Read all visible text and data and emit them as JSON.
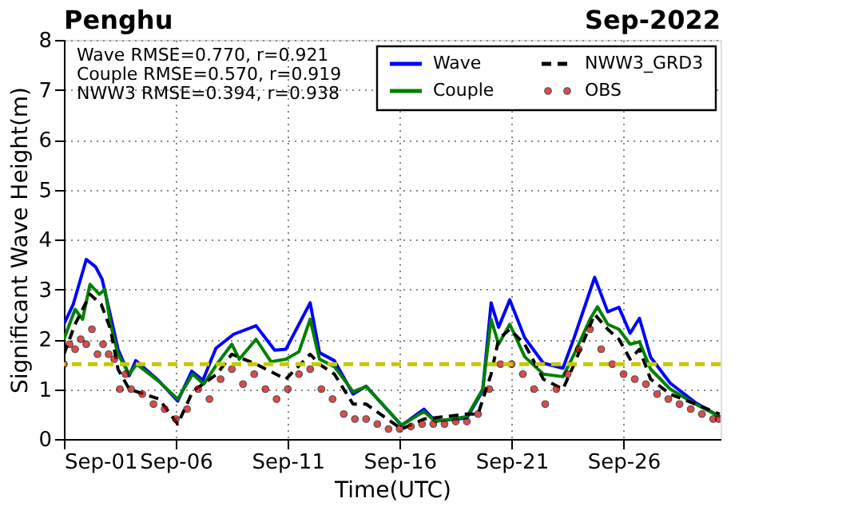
{
  "chart_data": {
    "type": "line",
    "title": "Penghu",
    "subtitle": "Sep-2022",
    "xlabel": "Time(UTC)",
    "ylabel": "Significant Wave Height(m)",
    "annotations": [
      "Wave RMSE=0.770, r=0.921",
      "Couple RMSE=0.570, r=0.919",
      "NWW3 RMSE=0.394, r=0.938"
    ],
    "xlim": [
      "2022-09-01",
      "2022-09-30T08:00"
    ],
    "xticks": [
      {
        "value": "2022-09-01",
        "label": "Sep-01"
      },
      {
        "value": "2022-09-06",
        "label": "Sep-06"
      },
      {
        "value": "2022-09-11",
        "label": "Sep-11"
      },
      {
        "value": "2022-09-16",
        "label": "Sep-16"
      },
      {
        "value": "2022-09-21",
        "label": "Sep-21"
      },
      {
        "value": "2022-09-26",
        "label": "Sep-26"
      }
    ],
    "ylim": [
      0,
      8
    ],
    "yticks": [
      0,
      1,
      2,
      3,
      4,
      5,
      6,
      7,
      8
    ],
    "grid": true,
    "legend": "top right",
    "ref_lines": [
      {
        "axis": "y",
        "value": 1.5,
        "color": "#c8c800",
        "line_style": "dashed"
      }
    ],
    "series": [
      {
        "name": "Wave",
        "color": "#0000ff",
        "line_style": "solid",
        "x": [
          "2022-09-01T00:00",
          "2022-09-01T10:00",
          "2022-09-02T00:00",
          "2022-09-02T10:00",
          "2022-09-02T17:00",
          "2022-09-03T01:00",
          "2022-09-03T10:00",
          "2022-09-03T22:00",
          "2022-09-04T05:00",
          "2022-09-05T05:00",
          "2022-09-06T02:00",
          "2022-09-06T17:00",
          "2022-09-07T05:00",
          "2022-09-07T19:00",
          "2022-09-08T14:00",
          "2022-09-09T14:00",
          "2022-09-10T10:00",
          "2022-09-10T22:00",
          "2022-09-12T00:00",
          "2022-09-12T10:00",
          "2022-09-13T02:00",
          "2022-09-13T22:00",
          "2022-09-14T12:00",
          "2022-09-16T02:00",
          "2022-09-17T02:00",
          "2022-09-17T14:00",
          "2022-09-19T00:00",
          "2022-09-19T17:00",
          "2022-09-20T02:00",
          "2022-09-20T10:00",
          "2022-09-20T22:00",
          "2022-09-21T14:00",
          "2022-09-22T10:00",
          "2022-09-23T07:00",
          "2022-09-23T19:00",
          "2022-09-24T17:00",
          "2022-09-25T07:00",
          "2022-09-25T19:00",
          "2022-09-26T07:00",
          "2022-09-26T17:00",
          "2022-09-27T05:00",
          "2022-09-28T02:00",
          "2022-09-29T05:00",
          "2022-09-30T07:00"
        ],
        "values": [
          2.3,
          2.7,
          3.6,
          3.45,
          3.2,
          2.55,
          1.8,
          1.27,
          1.57,
          1.18,
          0.76,
          1.36,
          1.18,
          1.82,
          2.1,
          2.27,
          1.78,
          1.8,
          2.73,
          1.73,
          1.57,
          0.9,
          1.06,
          0.27,
          0.6,
          0.36,
          0.42,
          0.97,
          2.73,
          2.24,
          2.79,
          2.03,
          1.52,
          1.42,
          2.03,
          3.24,
          2.55,
          2.64,
          2.12,
          2.42,
          1.64,
          1.12,
          0.73,
          0.45
        ]
      },
      {
        "name": "Couple",
        "color": "#008000",
        "line_style": "solid",
        "x": [
          "2022-09-01T00:00",
          "2022-09-01T12:00",
          "2022-09-01T20:00",
          "2022-09-02T04:00",
          "2022-09-02T14:00",
          "2022-09-02T20:00",
          "2022-09-03T02:00",
          "2022-09-03T10:00",
          "2022-09-03T22:00",
          "2022-09-04T06:00",
          "2022-09-05T06:00",
          "2022-09-06T02:00",
          "2022-09-06T18:00",
          "2022-09-07T06:00",
          "2022-09-07T20:00",
          "2022-09-08T12:00",
          "2022-09-08T20:00",
          "2022-09-09T14:00",
          "2022-09-10T06:00",
          "2022-09-10T22:00",
          "2022-09-11T12:00",
          "2022-09-12T00:00",
          "2022-09-12T10:00",
          "2022-09-13T02:00",
          "2022-09-13T22:00",
          "2022-09-14T12:00",
          "2022-09-16T02:00",
          "2022-09-17T02:00",
          "2022-09-17T14:00",
          "2022-09-19T00:00",
          "2022-09-19T17:00",
          "2022-09-20T02:00",
          "2022-09-20T10:00",
          "2022-09-20T22:00",
          "2022-09-21T14:00",
          "2022-09-22T10:00",
          "2022-09-23T07:00",
          "2022-09-23T19:00",
          "2022-09-24T12:00",
          "2022-09-24T20:00",
          "2022-09-25T07:00",
          "2022-09-25T19:00",
          "2022-09-26T07:00",
          "2022-09-26T17:00",
          "2022-09-27T05:00",
          "2022-09-28T02:00",
          "2022-09-29T05:00",
          "2022-09-30T07:00"
        ],
        "values": [
          2.0,
          2.6,
          2.4,
          3.1,
          2.9,
          3.0,
          2.3,
          1.7,
          1.3,
          1.5,
          1.15,
          0.8,
          1.3,
          1.1,
          1.5,
          1.9,
          1.6,
          2.0,
          1.55,
          1.6,
          1.75,
          2.4,
          1.6,
          1.45,
          0.95,
          1.05,
          0.28,
          0.55,
          0.35,
          0.45,
          1.0,
          2.4,
          1.9,
          2.3,
          1.65,
          1.3,
          1.25,
          1.7,
          2.4,
          2.65,
          2.3,
          2.2,
          1.9,
          1.95,
          1.4,
          1.0,
          0.7,
          0.45
        ]
      },
      {
        "name": "NWW3_GRD3",
        "color": "#000000",
        "line_style": "dashed",
        "x": [
          "2022-09-01T00:00",
          "2022-09-01T12:00",
          "2022-09-02T04:00",
          "2022-09-02T16:00",
          "2022-09-03T02:00",
          "2022-09-03T10:00",
          "2022-09-03T22:00",
          "2022-09-05T06:00",
          "2022-09-06T02:00",
          "2022-09-06T18:00",
          "2022-09-07T20:00",
          "2022-09-08T12:00",
          "2022-09-09T14:00",
          "2022-09-10T22:00",
          "2022-09-12T00:00",
          "2022-09-12T10:00",
          "2022-09-13T02:00",
          "2022-09-13T22:00",
          "2022-09-14T12:00",
          "2022-09-16T02:00",
          "2022-09-17T02:00",
          "2022-09-19T00:00",
          "2022-09-19T12:00",
          "2022-09-20T02:00",
          "2022-09-20T10:00",
          "2022-09-20T22:00",
          "2022-09-21T14:00",
          "2022-09-22T10:00",
          "2022-09-23T07:00",
          "2022-09-23T19:00",
          "2022-09-24T17:00",
          "2022-09-25T07:00",
          "2022-09-25T19:00",
          "2022-09-26T07:00",
          "2022-09-26T17:00",
          "2022-09-27T05:00",
          "2022-09-28T02:00",
          "2022-09-29T05:00",
          "2022-09-30T07:00"
        ],
        "values": [
          1.7,
          2.3,
          2.9,
          2.7,
          2.2,
          1.4,
          1.0,
          0.8,
          0.3,
          0.95,
          1.3,
          1.7,
          1.5,
          1.2,
          1.7,
          1.5,
          1.3,
          0.7,
          0.7,
          0.2,
          0.4,
          0.5,
          0.5,
          1.3,
          2.0,
          2.2,
          1.9,
          1.2,
          1.0,
          1.5,
          2.5,
          2.2,
          2.0,
          1.6,
          1.8,
          1.2,
          0.9,
          0.7,
          0.5
        ]
      },
      {
        "name": "OBS",
        "type": "scatter",
        "marker": "circle",
        "color": "#cc0000",
        "x": [
          "2022-09-01T00:00",
          "2022-09-01T06:00",
          "2022-09-01T12:00",
          "2022-09-01T18:00",
          "2022-09-02T00:00",
          "2022-09-02T06:00",
          "2022-09-02T12:00",
          "2022-09-02T18:00",
          "2022-09-03T00:00",
          "2022-09-03T06:00",
          "2022-09-03T12:00",
          "2022-09-03T18:00",
          "2022-09-04T00:00",
          "2022-09-04T12:00",
          "2022-09-05T00:00",
          "2022-09-05T12:00",
          "2022-09-06T00:00",
          "2022-09-06T12:00",
          "2022-09-07T00:00",
          "2022-09-07T12:00",
          "2022-09-08T00:00",
          "2022-09-08T12:00",
          "2022-09-09T00:00",
          "2022-09-09T12:00",
          "2022-09-10T00:00",
          "2022-09-10T12:00",
          "2022-09-11T00:00",
          "2022-09-11T12:00",
          "2022-09-12T00:00",
          "2022-09-12T12:00",
          "2022-09-13T00:00",
          "2022-09-13T12:00",
          "2022-09-14T00:00",
          "2022-09-14T12:00",
          "2022-09-15T00:00",
          "2022-09-15T12:00",
          "2022-09-16T00:00",
          "2022-09-16T12:00",
          "2022-09-17T00:00",
          "2022-09-17T12:00",
          "2022-09-18T00:00",
          "2022-09-18T12:00",
          "2022-09-19T00:00",
          "2022-09-19T12:00",
          "2022-09-20T00:00",
          "2022-09-20T12:00",
          "2022-09-21T00:00",
          "2022-09-21T12:00",
          "2022-09-22T00:00",
          "2022-09-22T12:00",
          "2022-09-23T00:00",
          "2022-09-23T12:00",
          "2022-09-24T00:00",
          "2022-09-24T12:00",
          "2022-09-25T00:00",
          "2022-09-25T12:00",
          "2022-09-26T00:00",
          "2022-09-26T12:00",
          "2022-09-27T00:00",
          "2022-09-27T12:00",
          "2022-09-28T00:00",
          "2022-09-28T12:00",
          "2022-09-29T00:00",
          "2022-09-29T12:00",
          "2022-09-30T00:00",
          "2022-09-30T06:00"
        ],
        "values": [
          1.5,
          1.9,
          1.8,
          2.0,
          1.9,
          2.2,
          1.7,
          1.9,
          1.7,
          1.6,
          1.0,
          1.3,
          1.0,
          0.9,
          0.7,
          0.6,
          0.4,
          0.6,
          1.0,
          0.8,
          1.2,
          1.4,
          1.1,
          1.3,
          1.0,
          0.8,
          1.0,
          1.3,
          1.4,
          1.0,
          0.8,
          0.5,
          0.4,
          0.4,
          0.3,
          0.2,
          0.2,
          0.25,
          0.3,
          0.3,
          0.3,
          0.35,
          0.35,
          0.5,
          1.0,
          1.5,
          1.5,
          1.3,
          1.0,
          0.7,
          1.0,
          1.3,
          1.8,
          2.2,
          1.8,
          1.5,
          1.3,
          1.2,
          1.1,
          0.9,
          0.8,
          0.7,
          0.6,
          0.5,
          0.4,
          0.4
        ]
      }
    ]
  }
}
